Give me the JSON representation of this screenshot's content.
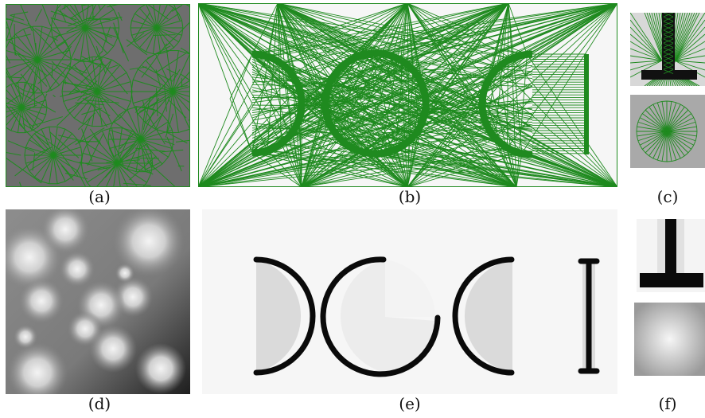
{
  "captions": {
    "a": "(a)",
    "b": "(b)",
    "c": "(c)",
    "d": "(d)",
    "e": "(e)",
    "f": "(f)"
  },
  "colors": {
    "mesh_green": "#1f8a1f",
    "ink_black": "#0a0a0a",
    "light_gray": "#f6f6f6",
    "fill_gray": "#dadada"
  }
}
